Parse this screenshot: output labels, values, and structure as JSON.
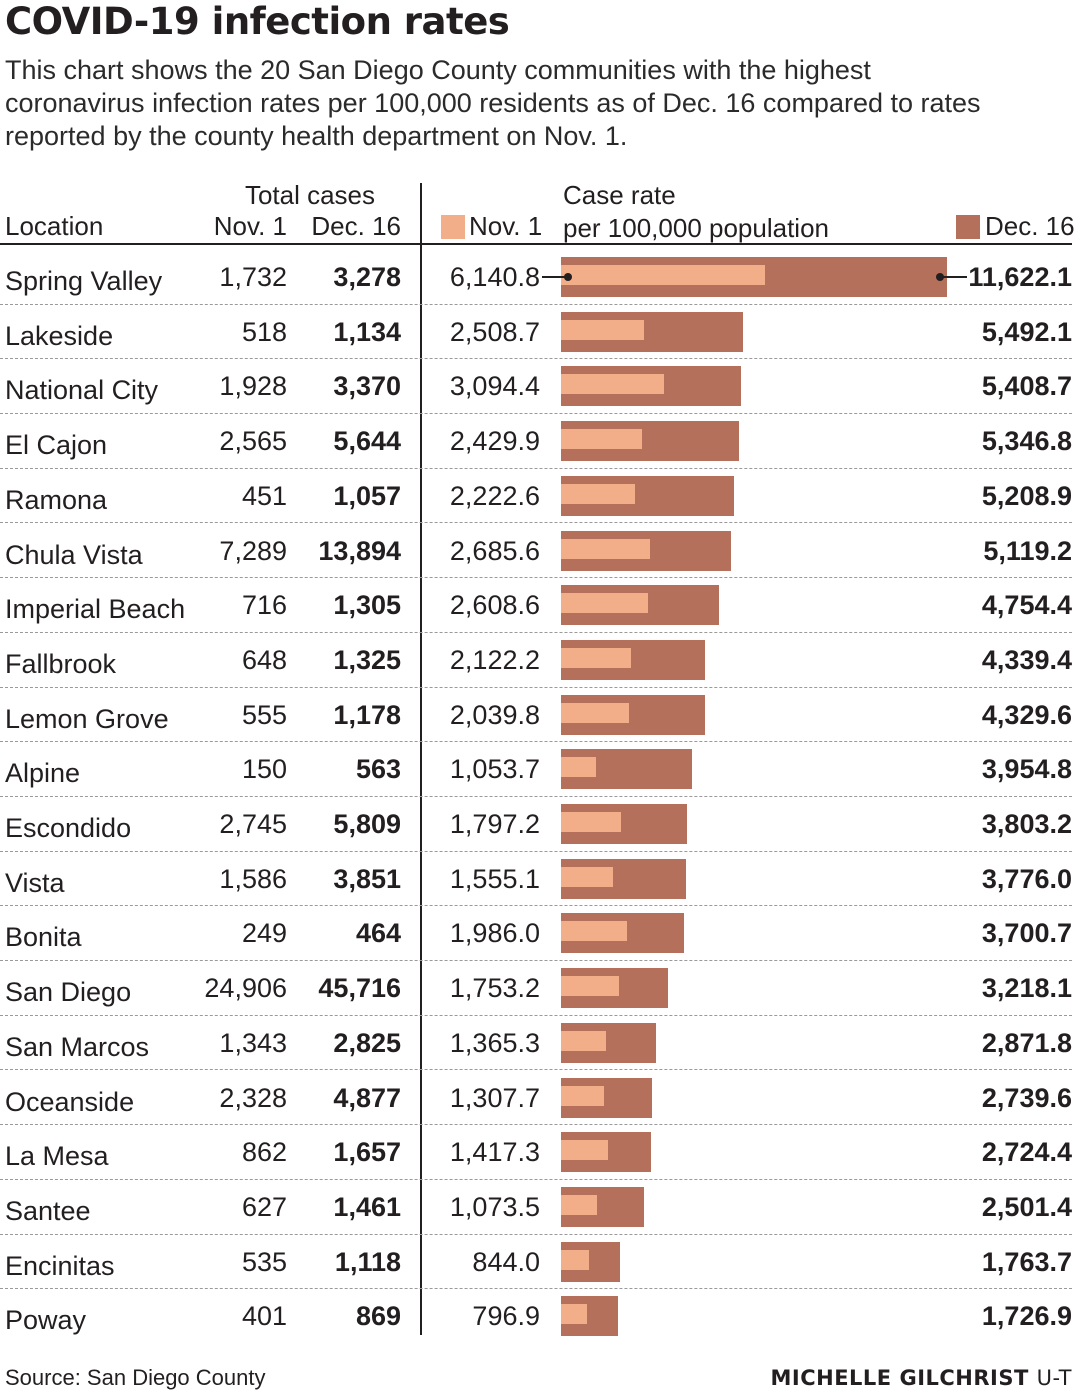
{
  "title": "COVID-19 infection rates",
  "subtitle": "This chart shows the 20 San Diego County communities with the highest coronavirus infection rates per 100,000 residents as of Dec. 16 compared to rates reported by the county health department on Nov. 1.",
  "headers": {
    "location": "Location",
    "total_cases": "Total cases",
    "nov1": "Nov. 1",
    "dec16": "Dec. 16",
    "legend_nov1": "Nov. 1",
    "legend_dec16": "Dec. 16",
    "case_rate_line1": "Case rate",
    "case_rate_line2": "per 100,000 population"
  },
  "colors": {
    "nov1_bar": "#f2ae88",
    "dec16_bar": "#b5705c"
  },
  "chart_data": {
    "type": "bar",
    "orientation": "horizontal",
    "title": "COVID-19 infection rates",
    "xlabel": "Case rate per 100,000 population",
    "xlim": [
      0,
      11622.1
    ],
    "categories": [
      "Spring Valley",
      "Lakeside",
      "National City",
      "El Cajon",
      "Ramona",
      "Chula Vista",
      "Imperial Beach",
      "Fallbrook",
      "Lemon Grove",
      "Alpine",
      "Escondido",
      "Vista",
      "Bonita",
      "San Diego",
      "San Marcos",
      "Oceanside",
      "La Mesa",
      "Santee",
      "Encinitas",
      "Poway"
    ],
    "series": [
      {
        "name": "Nov. 1",
        "values": [
          6140.8,
          2508.7,
          3094.4,
          2429.9,
          2222.6,
          2685.6,
          2608.6,
          2122.2,
          2039.8,
          1053.7,
          1797.2,
          1555.1,
          1986.0,
          1753.2,
          1365.3,
          1307.7,
          1417.3,
          1073.5,
          844.0,
          796.9
        ]
      },
      {
        "name": "Dec. 16",
        "values": [
          11622.1,
          5492.1,
          5408.7,
          5346.8,
          5208.9,
          5119.2,
          4754.4,
          4339.4,
          4329.6,
          3954.8,
          3803.2,
          3776.0,
          3700.7,
          3218.1,
          2871.8,
          2739.6,
          2724.4,
          2501.4,
          1763.7,
          1726.9
        ]
      }
    ]
  },
  "rows": [
    {
      "location": "Spring Valley",
      "cases_nov1": "1,732",
      "cases_dec16": "3,278",
      "rate_nov1": "6,140.8",
      "rate_dec16": "11,622.1"
    },
    {
      "location": "Lakeside",
      "cases_nov1": "518",
      "cases_dec16": "1,134",
      "rate_nov1": "2,508.7",
      "rate_dec16": "5,492.1"
    },
    {
      "location": "National City",
      "cases_nov1": "1,928",
      "cases_dec16": "3,370",
      "rate_nov1": "3,094.4",
      "rate_dec16": "5,408.7"
    },
    {
      "location": "El Cajon",
      "cases_nov1": "2,565",
      "cases_dec16": "5,644",
      "rate_nov1": "2,429.9",
      "rate_dec16": "5,346.8"
    },
    {
      "location": "Ramona",
      "cases_nov1": "451",
      "cases_dec16": "1,057",
      "rate_nov1": "2,222.6",
      "rate_dec16": "5,208.9"
    },
    {
      "location": "Chula Vista",
      "cases_nov1": "7,289",
      "cases_dec16": "13,894",
      "rate_nov1": "2,685.6",
      "rate_dec16": "5,119.2"
    },
    {
      "location": "Imperial Beach",
      "cases_nov1": "716",
      "cases_dec16": "1,305",
      "rate_nov1": "2,608.6",
      "rate_dec16": "4,754.4"
    },
    {
      "location": "Fallbrook",
      "cases_nov1": "648",
      "cases_dec16": "1,325",
      "rate_nov1": "2,122.2",
      "rate_dec16": "4,339.4"
    },
    {
      "location": "Lemon Grove",
      "cases_nov1": "555",
      "cases_dec16": "1,178",
      "rate_nov1": "2,039.8",
      "rate_dec16": "4,329.6"
    },
    {
      "location": "Alpine",
      "cases_nov1": "150",
      "cases_dec16": "563",
      "rate_nov1": "1,053.7",
      "rate_dec16": "3,954.8"
    },
    {
      "location": "Escondido",
      "cases_nov1": "2,745",
      "cases_dec16": "5,809",
      "rate_nov1": "1,797.2",
      "rate_dec16": "3,803.2"
    },
    {
      "location": "Vista",
      "cases_nov1": "1,586",
      "cases_dec16": "3,851",
      "rate_nov1": "1,555.1",
      "rate_dec16": "3,776.0"
    },
    {
      "location": "Bonita",
      "cases_nov1": "249",
      "cases_dec16": "464",
      "rate_nov1": "1,986.0",
      "rate_dec16": "3,700.7"
    },
    {
      "location": "San Diego",
      "cases_nov1": "24,906",
      "cases_dec16": "45,716",
      "rate_nov1": "1,753.2",
      "rate_dec16": "3,218.1"
    },
    {
      "location": "San Marcos",
      "cases_nov1": "1,343",
      "cases_dec16": "2,825",
      "rate_nov1": "1,365.3",
      "rate_dec16": "2,871.8"
    },
    {
      "location": "Oceanside",
      "cases_nov1": "2,328",
      "cases_dec16": "4,877",
      "rate_nov1": "1,307.7",
      "rate_dec16": "2,739.6"
    },
    {
      "location": "La Mesa",
      "cases_nov1": "862",
      "cases_dec16": "1,657",
      "rate_nov1": "1,417.3",
      "rate_dec16": "2,724.4"
    },
    {
      "location": "Santee",
      "cases_nov1": "627",
      "cases_dec16": "1,461",
      "rate_nov1": "1,073.5",
      "rate_dec16": "2,501.4"
    },
    {
      "location": "Encinitas",
      "cases_nov1": "535",
      "cases_dec16": "1,118",
      "rate_nov1": "844.0",
      "rate_dec16": "1,763.7"
    },
    {
      "location": "Poway",
      "cases_nov1": "401",
      "cases_dec16": "869",
      "rate_nov1": "796.9",
      "rate_dec16": "1,726.9"
    }
  ],
  "footer": {
    "source": "Source: San Diego County",
    "credit_name": "MICHELLE GILCHRIST",
    "credit_org": "U-T"
  }
}
